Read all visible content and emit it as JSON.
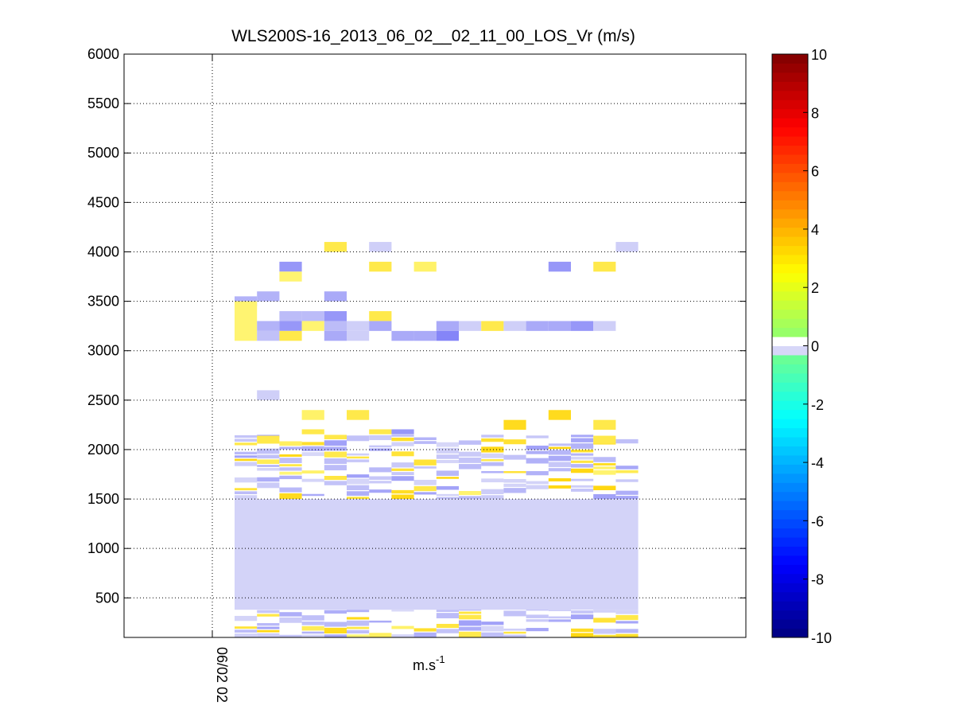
{
  "chart_data": {
    "type": "heatmap",
    "title": "WLS200S-16_2013_06_02__02_11_00_LOS_Vr (m/s)",
    "xlabel": "m.s",
    "xlabel_sup": "-1",
    "x_tick_labels": [
      "06/02 02"
    ],
    "y_ticks": [
      500,
      1000,
      1500,
      2000,
      2500,
      3000,
      3500,
      4000,
      4500,
      5000,
      5500,
      6000
    ],
    "ylim": [
      100,
      6000
    ],
    "grid": true,
    "colorbar": {
      "range": [
        -10,
        10
      ],
      "ticks": [
        -10,
        -8,
        -6,
        -4,
        -2,
        0,
        2,
        4,
        6,
        8,
        10
      ],
      "colormap": "jet-like (blue negative, yellow/red positive)",
      "low_color": "#00008f",
      "high_color": "#800000"
    },
    "x_columns": [
      "c1",
      "c2",
      "c3",
      "c4",
      "c5",
      "c6",
      "c7",
      "c8",
      "c9",
      "c10",
      "c11",
      "c12",
      "c13",
      "c14",
      "c15",
      "c16",
      "c17",
      "c18"
    ],
    "cells": [
      {
        "col": 1,
        "alt": 3500,
        "h": 100,
        "v": -1.0
      },
      {
        "col": 1,
        "alt": 3300,
        "h": 400,
        "v": 0.5
      },
      {
        "col": 2,
        "alt": 3550,
        "h": 100,
        "v": -1.0
      },
      {
        "col": 2,
        "alt": 3250,
        "h": 100,
        "v": -1.0
      },
      {
        "col": 2,
        "alt": 3150,
        "h": 100,
        "v": -0.7
      },
      {
        "col": 2,
        "alt": 2550,
        "h": 100,
        "v": -0.4
      },
      {
        "col": 2,
        "alt": 2100,
        "h": 80,
        "v": 1.0
      },
      {
        "col": 3,
        "alt": 3850,
        "h": 100,
        "v": -1.6
      },
      {
        "col": 3,
        "alt": 3750,
        "h": 100,
        "v": 0.5
      },
      {
        "col": 3,
        "alt": 3350,
        "h": 100,
        "v": -0.8
      },
      {
        "col": 3,
        "alt": 3250,
        "h": 100,
        "v": -1.6
      },
      {
        "col": 3,
        "alt": 3150,
        "h": 100,
        "v": 1.0
      },
      {
        "col": 4,
        "alt": 3350,
        "h": 100,
        "v": -0.8
      },
      {
        "col": 4,
        "alt": 3250,
        "h": 100,
        "v": 0.5
      },
      {
        "col": 4,
        "alt": 2350,
        "h": 100,
        "v": 0.6
      },
      {
        "col": 4,
        "alt": 2180,
        "h": 50,
        "v": 1.0
      },
      {
        "col": 5,
        "alt": 4050,
        "h": 100,
        "v": 1.0
      },
      {
        "col": 5,
        "alt": 3550,
        "h": 100,
        "v": -1.2
      },
      {
        "col": 5,
        "alt": 3350,
        "h": 100,
        "v": -1.6
      },
      {
        "col": 5,
        "alt": 3250,
        "h": 100,
        "v": -0.8
      },
      {
        "col": 5,
        "alt": 3150,
        "h": 100,
        "v": -1.2
      },
      {
        "col": 6,
        "alt": 3150,
        "h": 100,
        "v": -0.4
      },
      {
        "col": 6,
        "alt": 3250,
        "h": 100,
        "v": -0.4
      },
      {
        "col": 6,
        "alt": 2350,
        "h": 100,
        "v": 1.0
      },
      {
        "col": 7,
        "alt": 4050,
        "h": 100,
        "v": -0.4
      },
      {
        "col": 7,
        "alt": 3850,
        "h": 100,
        "v": 1.0
      },
      {
        "col": 7,
        "alt": 3350,
        "h": 100,
        "v": 1.0
      },
      {
        "col": 7,
        "alt": 3250,
        "h": 100,
        "v": -1.2
      },
      {
        "col": 7,
        "alt": 2180,
        "h": 50,
        "v": 1.0
      },
      {
        "col": 8,
        "alt": 3150,
        "h": 100,
        "v": -1.2
      },
      {
        "col": 8,
        "alt": 2180,
        "h": 50,
        "v": -1.6
      },
      {
        "col": 9,
        "alt": 3850,
        "h": 100,
        "v": 0.6
      },
      {
        "col": 9,
        "alt": 3150,
        "h": 100,
        "v": -1.2
      },
      {
        "col": 10,
        "alt": 3250,
        "h": 100,
        "v": -1.2
      },
      {
        "col": 10,
        "alt": 3150,
        "h": 100,
        "v": -2.0
      },
      {
        "col": 11,
        "alt": 3250,
        "h": 100,
        "v": -0.4
      },
      {
        "col": 12,
        "alt": 3250,
        "h": 100,
        "v": 1.0
      },
      {
        "col": 13,
        "alt": 3250,
        "h": 100,
        "v": -0.4
      },
      {
        "col": 13,
        "alt": 2250,
        "h": 100,
        "v": 1.6
      },
      {
        "col": 14,
        "alt": 3250,
        "h": 100,
        "v": -1.2
      },
      {
        "col": 15,
        "alt": 3850,
        "h": 100,
        "v": -1.6
      },
      {
        "col": 15,
        "alt": 3250,
        "h": 100,
        "v": -1.2
      },
      {
        "col": 15,
        "alt": 2350,
        "h": 100,
        "v": 1.6
      },
      {
        "col": 16,
        "alt": 3250,
        "h": 100,
        "v": -1.6
      },
      {
        "col": 17,
        "alt": 3850,
        "h": 100,
        "v": 1.0
      },
      {
        "col": 17,
        "alt": 3250,
        "h": 100,
        "v": -0.4
      },
      {
        "col": 17,
        "alt": 2250,
        "h": 100,
        "v": 1.0
      },
      {
        "col": 17,
        "alt": 2100,
        "h": 80,
        "v": 1.0
      },
      {
        "col": 18,
        "alt": 4050,
        "h": 100,
        "v": -0.4
      }
    ],
    "low_layer": {
      "col_start": 1,
      "col_end": 18,
      "alt_from": 380,
      "alt_to": 1500,
      "v": -0.3
    },
    "noisy_band": {
      "alt_from": 1500,
      "alt_to": 2150
    },
    "surface_band": {
      "alt_from": 100,
      "alt_to": 380
    }
  }
}
